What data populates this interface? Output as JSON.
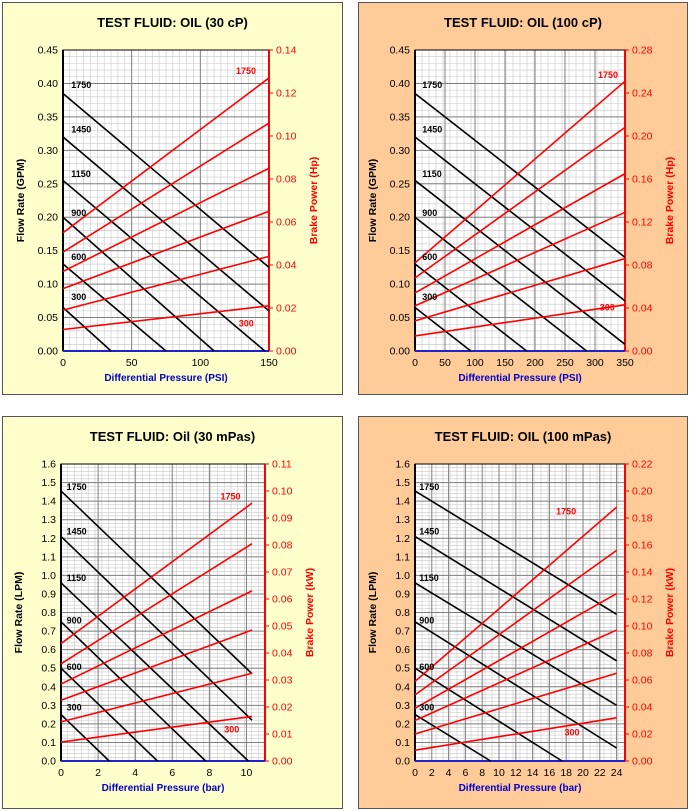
{
  "colors": {
    "panel_bg_yellow": "#FFFFCC",
    "panel_bg_orange": "#FFCC99",
    "plot_bg": "#FFFFFF",
    "grid": "#7f7f7f",
    "flow_line": "#000000",
    "power_line": "#FF0000",
    "left_axis_text": "#000000",
    "right_axis_text": "#FF0000",
    "xlabel_text": "#0000CC"
  },
  "chart_data": [
    {
      "type": "line",
      "title": "TEST FLUID:  OIL (30 cP)",
      "xlabel": "Differential Pressure (PSI)",
      "ylabel": "Flow Rate (GPM)",
      "y2label": "Brake Power (Hp)",
      "xlim": [
        0,
        150
      ],
      "ylim": [
        0,
        0.45
      ],
      "y2lim": [
        0,
        0.14
      ],
      "xticks": [
        "0",
        "50",
        "100",
        "150"
      ],
      "yticks": [
        "0.00",
        "0.05",
        "0.10",
        "0.15",
        "0.20",
        "0.25",
        "0.30",
        "0.35",
        "0.40",
        "0.45"
      ],
      "y2ticks": [
        "0.00",
        "0.02",
        "0.04",
        "0.06",
        "0.08",
        "0.10",
        "0.12",
        "0.14"
      ],
      "flow_series": [
        {
          "name": "1750",
          "x": [
            0,
            150
          ],
          "y": [
            0.385,
            0.125
          ]
        },
        {
          "name": "1450",
          "x": [
            0,
            150
          ],
          "y": [
            0.32,
            0.06
          ]
        },
        {
          "name": "1150",
          "x": [
            0,
            147
          ],
          "y": [
            0.255,
            0.0
          ]
        },
        {
          "name": "900",
          "x": [
            0,
            110
          ],
          "y": [
            0.2,
            0.0
          ]
        },
        {
          "name": "600",
          "x": [
            0,
            75
          ],
          "y": [
            0.13,
            0.0
          ]
        },
        {
          "name": "300",
          "x": [
            0,
            35
          ],
          "y": [
            0.065,
            0.0
          ]
        }
      ],
      "power_series": [
        {
          "name": "1750",
          "x": [
            0,
            150
          ],
          "y": [
            0.055,
            0.127
          ]
        },
        {
          "name": "1450",
          "x": [
            0,
            150
          ],
          "y": [
            0.046,
            0.106
          ]
        },
        {
          "name": "1150",
          "x": [
            0,
            150
          ],
          "y": [
            0.037,
            0.085
          ]
        },
        {
          "name": "900",
          "x": [
            0,
            150
          ],
          "y": [
            0.029,
            0.065
          ]
        },
        {
          "name": "600",
          "x": [
            0,
            150
          ],
          "y": [
            0.019,
            0.044
          ]
        },
        {
          "name": "300",
          "x": [
            0,
            150
          ],
          "y": [
            0.01,
            0.021
          ]
        }
      ],
      "flow_labels": [
        {
          "text": "1750",
          "x": 6,
          "y": 0.39
        },
        {
          "text": "1450",
          "x": 6,
          "y": 0.324
        },
        {
          "text": "1150",
          "x": 6,
          "y": 0.257
        },
        {
          "text": "900",
          "x": 6,
          "y": 0.199
        },
        {
          "text": "600",
          "x": 6,
          "y": 0.133
        },
        {
          "text": "300",
          "x": 6,
          "y": 0.073
        }
      ],
      "power_labels": [
        {
          "text": "1750",
          "x": 126,
          "y": 0.128
        },
        {
          "text": "300",
          "x": 128,
          "y": 0.0105
        }
      ]
    },
    {
      "type": "line",
      "title": "TEST FLUID:  OIL (100 cP)",
      "xlabel": "Differential Pressure (PSI)",
      "ylabel": "Flow Rate (GPM)",
      "y2label": "Brake Power (Hp)",
      "xlim": [
        0,
        350
      ],
      "ylim": [
        0,
        0.45
      ],
      "y2lim": [
        0,
        0.28
      ],
      "xticks": [
        "0",
        "50",
        "100",
        "150",
        "200",
        "250",
        "300",
        "350"
      ],
      "yticks": [
        "0.00",
        "0.05",
        "0.10",
        "0.15",
        "0.20",
        "0.25",
        "0.30",
        "0.35",
        "0.40",
        "0.45"
      ],
      "y2ticks": [
        "0.00",
        "0.04",
        "0.08",
        "0.12",
        "0.16",
        "0.20",
        "0.24",
        "0.28"
      ],
      "flow_series": [
        {
          "name": "1750",
          "x": [
            0,
            350
          ],
          "y": [
            0.385,
            0.14
          ]
        },
        {
          "name": "1450",
          "x": [
            0,
            350
          ],
          "y": [
            0.32,
            0.075
          ]
        },
        {
          "name": "1150",
          "x": [
            0,
            350
          ],
          "y": [
            0.255,
            0.01
          ]
        },
        {
          "name": "900",
          "x": [
            0,
            286
          ],
          "y": [
            0.2,
            0.0
          ]
        },
        {
          "name": "600",
          "x": [
            0,
            186
          ],
          "y": [
            0.13,
            0.0
          ]
        },
        {
          "name": "300",
          "x": [
            0,
            93
          ],
          "y": [
            0.065,
            0.0
          ]
        }
      ],
      "power_series": [
        {
          "name": "1750",
          "x": [
            0,
            350
          ],
          "y": [
            0.082,
            0.251
          ]
        },
        {
          "name": "1450",
          "x": [
            0,
            350
          ],
          "y": [
            0.068,
            0.208
          ]
        },
        {
          "name": "1150",
          "x": [
            0,
            350
          ],
          "y": [
            0.054,
            0.165
          ]
        },
        {
          "name": "900",
          "x": [
            0,
            350
          ],
          "y": [
            0.042,
            0.129
          ]
        },
        {
          "name": "600",
          "x": [
            0,
            350
          ],
          "y": [
            0.028,
            0.086
          ]
        },
        {
          "name": "300",
          "x": [
            0,
            350
          ],
          "y": [
            0.014,
            0.043
          ]
        }
      ],
      "flow_labels": [
        {
          "text": "1750",
          "x": 12,
          "y": 0.39
        },
        {
          "text": "1450",
          "x": 12,
          "y": 0.324
        },
        {
          "text": "1150",
          "x": 12,
          "y": 0.257
        },
        {
          "text": "900",
          "x": 12,
          "y": 0.199
        },
        {
          "text": "600",
          "x": 12,
          "y": 0.133
        },
        {
          "text": "300",
          "x": 12,
          "y": 0.073
        }
      ],
      "power_labels": [
        {
          "text": "1750",
          "x": 305,
          "y": 0.252
        },
        {
          "text": "300",
          "x": 308,
          "y": 0.036
        }
      ]
    },
    {
      "type": "line",
      "title": "TEST FLUID:  Oil (30 mPas)",
      "xlabel": "Differential Pressure (bar)",
      "ylabel": "Flow Rate (LPM)",
      "y2label": "Brake Power (kW)",
      "xlim": [
        0,
        11
      ],
      "ylim": [
        0,
        1.6
      ],
      "y2lim": [
        0,
        0.11
      ],
      "xticks": [
        "0",
        "2",
        "4",
        "6",
        "8",
        "10"
      ],
      "xtick_values": [
        0,
        2,
        4,
        6,
        8,
        10
      ],
      "yticks": [
        "0.0",
        "0.1",
        "0.2",
        "0.3",
        "0.4",
        "0.5",
        "0.6",
        "0.7",
        "0.8",
        "0.9",
        "1.0",
        "1.1",
        "1.2",
        "1.3",
        "1.4",
        "1.5",
        "1.6"
      ],
      "y2ticks": [
        "0.00",
        "0.01",
        "0.02",
        "0.03",
        "0.04",
        "0.05",
        "0.06",
        "0.07",
        "0.08",
        "0.09",
        "0.10",
        "0.11"
      ],
      "flow_series": [
        {
          "name": "1750",
          "x": [
            0,
            10.3
          ],
          "y": [
            1.455,
            0.47
          ]
        },
        {
          "name": "1450",
          "x": [
            0,
            10.3
          ],
          "y": [
            1.21,
            0.22
          ]
        },
        {
          "name": "1150",
          "x": [
            0,
            10.1
          ],
          "y": [
            0.96,
            0.0
          ]
        },
        {
          "name": "900",
          "x": [
            0,
            7.8
          ],
          "y": [
            0.75,
            0.0
          ]
        },
        {
          "name": "600",
          "x": [
            0,
            5.2
          ],
          "y": [
            0.5,
            0.0
          ]
        },
        {
          "name": "300",
          "x": [
            0,
            2.6
          ],
          "y": [
            0.25,
            0.0
          ]
        }
      ],
      "power_series": [
        {
          "name": "1750",
          "x": [
            0,
            10.3
          ],
          "y": [
            0.0435,
            0.0955
          ]
        },
        {
          "name": "1450",
          "x": [
            0,
            10.3
          ],
          "y": [
            0.036,
            0.0805
          ]
        },
        {
          "name": "1150",
          "x": [
            0,
            10.3
          ],
          "y": [
            0.0285,
            0.063
          ]
        },
        {
          "name": "900",
          "x": [
            0,
            10.3
          ],
          "y": [
            0.0225,
            0.0485
          ]
        },
        {
          "name": "600",
          "x": [
            0,
            10.3
          ],
          "y": [
            0.0145,
            0.0325
          ]
        },
        {
          "name": "300",
          "x": [
            0,
            10.3
          ],
          "y": [
            0.007,
            0.0165
          ]
        }
      ],
      "flow_labels": [
        {
          "text": "1750",
          "x": 0.3,
          "y": 1.45
        },
        {
          "text": "1450",
          "x": 0.3,
          "y": 1.21
        },
        {
          "text": "1150",
          "x": 0.3,
          "y": 0.96
        },
        {
          "text": "900",
          "x": 0.3,
          "y": 0.73
        },
        {
          "text": "600",
          "x": 0.3,
          "y": 0.48
        },
        {
          "text": "300",
          "x": 0.3,
          "y": 0.26
        }
      ],
      "power_labels": [
        {
          "text": "1750",
          "x": 8.6,
          "y": 0.0962
        },
        {
          "text": "300",
          "x": 8.8,
          "y": 0.0098
        }
      ]
    },
    {
      "type": "line",
      "title": "TEST FLUID:  OIL (100 mPas)",
      "xlabel": "Differential Pressure (bar)",
      "ylabel": "Flow Rate (LPM)",
      "y2label": "Brake Power (kW)",
      "xlim": [
        0,
        25
      ],
      "ylim": [
        0,
        1.6
      ],
      "y2lim": [
        0,
        0.22
      ],
      "xticks": [
        "0",
        "2",
        "4",
        "6",
        "8",
        "10",
        "12",
        "14",
        "16",
        "18",
        "20",
        "22",
        "24"
      ],
      "xtick_values": [
        0,
        2,
        4,
        6,
        8,
        10,
        12,
        14,
        16,
        18,
        20,
        22,
        24
      ],
      "yticks": [
        "0.0",
        "0.1",
        "0.2",
        "0.3",
        "0.4",
        "0.5",
        "0.6",
        "0.7",
        "0.8",
        "0.9",
        "1.0",
        "1.1",
        "1.2",
        "1.3",
        "1.4",
        "1.5",
        "1.6"
      ],
      "y2ticks": [
        "0.00",
        "0.02",
        "0.04",
        "0.06",
        "0.08",
        "0.10",
        "0.12",
        "0.14",
        "0.16",
        "0.18",
        "0.20",
        "0.22"
      ],
      "flow_series": [
        {
          "name": "1750",
          "x": [
            0,
            24
          ],
          "y": [
            1.455,
            0.79
          ]
        },
        {
          "name": "1450",
          "x": [
            0,
            24
          ],
          "y": [
            1.21,
            0.54
          ]
        },
        {
          "name": "1150",
          "x": [
            0,
            24
          ],
          "y": [
            0.96,
            0.3
          ]
        },
        {
          "name": "900",
          "x": [
            0,
            24
          ],
          "y": [
            0.75,
            0.07
          ]
        },
        {
          "name": "600",
          "x": [
            0,
            17.5
          ],
          "y": [
            0.5,
            0.0
          ]
        },
        {
          "name": "300",
          "x": [
            0,
            9
          ],
          "y": [
            0.25,
            0.0
          ]
        }
      ],
      "power_series": [
        {
          "name": "1750",
          "x": [
            0,
            24
          ],
          "y": [
            0.059,
            0.188
          ]
        },
        {
          "name": "1450",
          "x": [
            0,
            24
          ],
          "y": [
            0.049,
            0.156
          ]
        },
        {
          "name": "1150",
          "x": [
            0,
            24
          ],
          "y": [
            0.039,
            0.124
          ]
        },
        {
          "name": "900",
          "x": [
            0,
            24
          ],
          "y": [
            0.03,
            0.097
          ]
        },
        {
          "name": "600",
          "x": [
            0,
            24
          ],
          "y": [
            0.02,
            0.065
          ]
        },
        {
          "name": "300",
          "x": [
            0,
            24
          ],
          "y": [
            0.008,
            0.032
          ]
        }
      ],
      "flow_labels": [
        {
          "text": "1750",
          "x": 0.5,
          "y": 1.45
        },
        {
          "text": "1450",
          "x": 0.5,
          "y": 1.21
        },
        {
          "text": "1150",
          "x": 0.5,
          "y": 0.96
        },
        {
          "text": "900",
          "x": 0.5,
          "y": 0.73
        },
        {
          "text": "600",
          "x": 0.5,
          "y": 0.48
        },
        {
          "text": "300",
          "x": 0.5,
          "y": 0.26
        }
      ],
      "power_labels": [
        {
          "text": "1750",
          "x": 16.8,
          "y": 0.181
        },
        {
          "text": "300",
          "x": 17.8,
          "y": 0.0175
        }
      ]
    }
  ]
}
